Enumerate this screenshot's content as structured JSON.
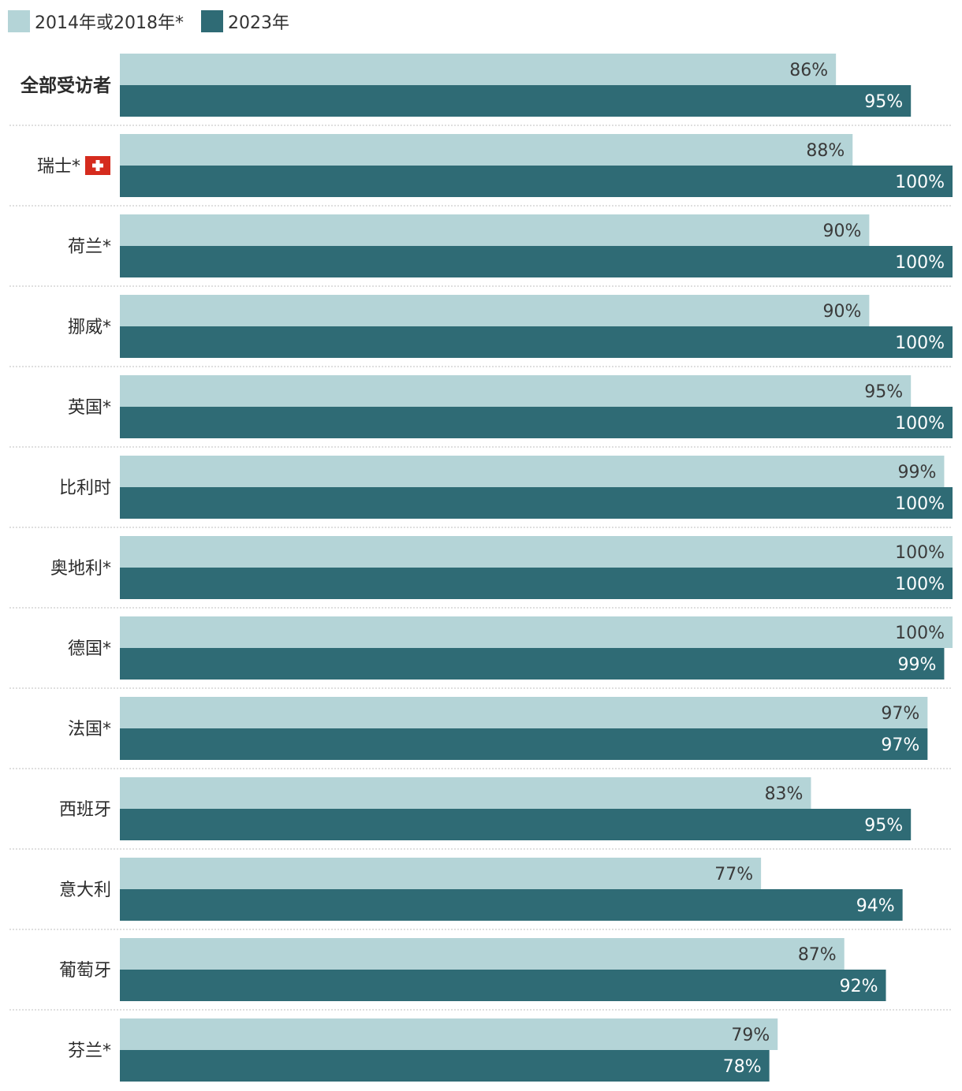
{
  "legend": {
    "series_1": "2014年或2018年*",
    "series_2": "2023年"
  },
  "colors": {
    "series_1": "#b4d4d7",
    "series_2": "#2f6b75",
    "label_on_light": "#3a3a3a",
    "label_on_dark": "#ffffff",
    "divider": "#bfbfbf",
    "swiss_flag_red": "#d52b1e"
  },
  "chart_data": {
    "type": "bar",
    "orientation": "horizontal",
    "unit": "%",
    "xlim": [
      0,
      100
    ],
    "grid": false,
    "legend_position": "top-left",
    "categories": [
      "全部受访者",
      "瑞士*",
      "荷兰*",
      "挪威*",
      "英国*",
      "比利时",
      "奥地利*",
      "德国*",
      "法国*",
      "西班牙",
      "意大利",
      "葡萄牙",
      "芬兰*"
    ],
    "emphasized_category": "全部受访者",
    "category_icons": {
      "瑞士*": "swiss-flag-icon"
    },
    "series": [
      {
        "name": "2014年或2018年*",
        "values": [
          86,
          88,
          90,
          90,
          95,
          99,
          100,
          100,
          97,
          83,
          77,
          87,
          79
        ]
      },
      {
        "name": "2023年",
        "values": [
          95,
          100,
          100,
          100,
          100,
          100,
          100,
          99,
          97,
          95,
          94,
          92,
          78
        ]
      }
    ]
  }
}
